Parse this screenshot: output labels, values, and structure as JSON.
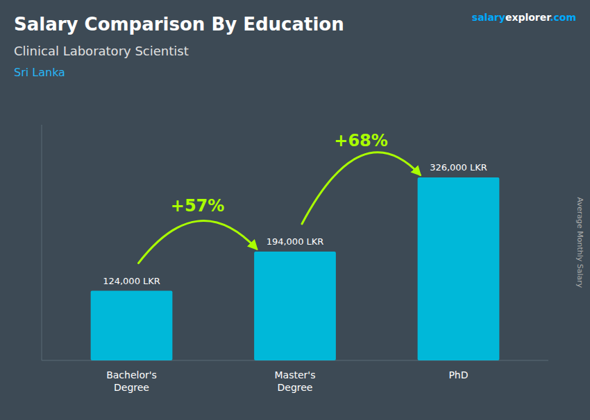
{
  "chart_data": {
    "type": "bar",
    "title": "Salary Comparison By Education",
    "subtitle": "Clinical Laboratory Scientist",
    "ylabel": "Average Monthly Salary",
    "categories": [
      "Bachelor's\nDegree",
      "Master's\nDegree",
      "PhD"
    ],
    "values": [
      124000,
      194000,
      326000
    ],
    "value_labels": [
      "124,000 LKR",
      "194,000 LKR",
      "326,000 LKR"
    ],
    "data_labels": true,
    "color": "#00b8d9",
    "ylim": [
      0,
      420000
    ],
    "tick_labels": "x",
    "grid": false,
    "annotations": [
      {
        "label": "+57%",
        "value": 57,
        "color": "#aaff00"
      },
      {
        "label": "+68%",
        "value": 68,
        "color": "#aaff00"
      },
      {
        "label": "Sri Lanka",
        "color": "#29b6f6"
      },
      {
        "label": "salary",
        "color": "#00aaff"
      },
      {
        "label": "explorer",
        "color": "#ffffff"
      },
      {
        "label": ".com",
        "color": "#00aaff"
      }
    ]
  }
}
